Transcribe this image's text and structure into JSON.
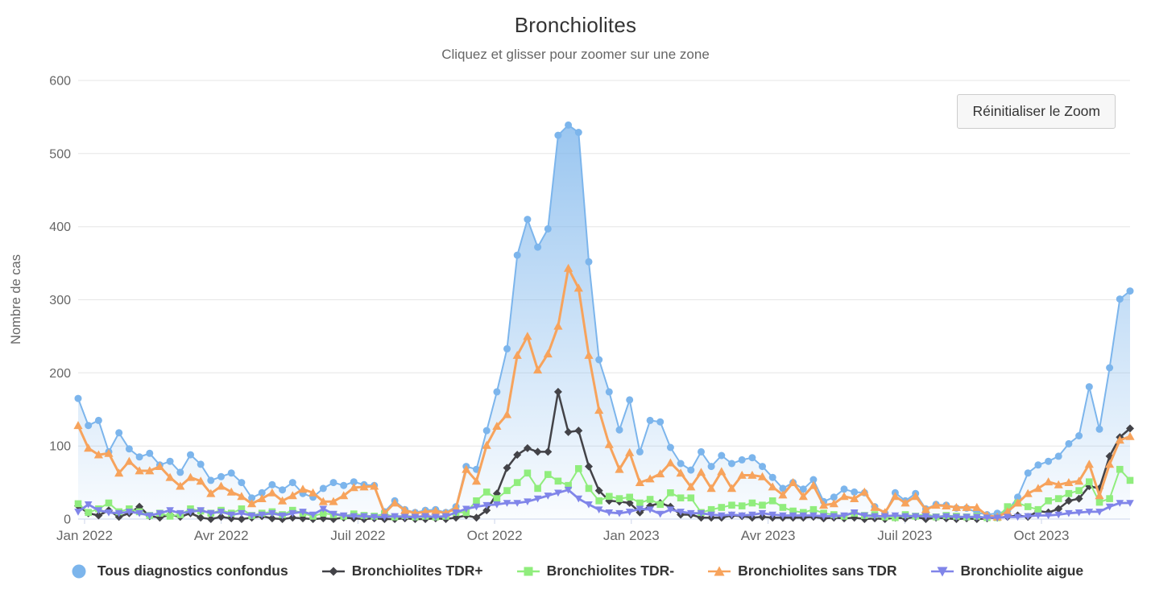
{
  "header": {},
  "toolbar": {
    "reset_zoom_label": "Réinitialiser le Zoom"
  },
  "chart_data": {
    "type": "line",
    "title": "Bronchiolites",
    "subtitle": "Cliquez et glisser pour zoomer sur une zone",
    "xlabel": "",
    "ylabel": "Nombre de cas",
    "ylim": [
      0,
      600
    ],
    "yticks": [
      0,
      100,
      200,
      300,
      400,
      500,
      600
    ],
    "xticklabels": [
      "Jan 2022",
      "Avr 2022",
      "Juil 2022",
      "Oct 2022",
      "Jan 2023",
      "Avr 2023",
      "Juil 2023",
      "Oct 2023"
    ],
    "x_unit": "week",
    "x_range": "Jan 2022 - Dec 2023",
    "grid": true,
    "legend_position": "bottom",
    "series": [
      {
        "name": "Tous diagnostics confondus",
        "type": "area",
        "color": "#7cb5ec",
        "marker": "circle",
        "values": [
          165,
          128,
          135,
          92,
          118,
          96,
          85,
          90,
          74,
          79,
          64,
          88,
          75,
          53,
          58,
          63,
          50,
          29,
          36,
          47,
          40,
          50,
          35,
          30,
          42,
          50,
          46,
          51,
          47,
          46,
          10,
          25,
          13,
          9,
          12,
          13,
          9,
          17,
          72,
          68,
          121,
          174,
          233,
          361,
          410,
          372,
          397,
          525,
          539,
          529,
          352,
          218,
          174,
          122,
          163,
          92,
          135,
          133,
          98,
          76,
          67,
          92,
          72,
          87,
          76,
          81,
          84,
          72,
          57,
          42,
          50,
          41,
          54,
          24,
          30,
          41,
          37,
          36,
          17,
          8,
          36,
          25,
          35,
          14,
          20,
          19,
          15,
          15,
          9,
          6,
          8,
          11,
          30,
          63,
          74,
          79,
          86,
          103,
          114,
          181,
          123,
          207,
          301,
          312
        ]
      },
      {
        "name": "Bronchiolites TDR+",
        "type": "line",
        "color": "#434348",
        "marker": "diamond",
        "values": [
          18,
          8,
          5,
          12,
          3,
          8,
          17,
          4,
          2,
          6,
          3,
          8,
          2,
          0,
          3,
          1,
          0,
          2,
          4,
          1,
          0,
          2,
          1,
          0,
          1,
          0,
          2,
          1,
          0,
          1,
          0,
          0,
          1,
          0,
          0,
          1,
          0,
          2,
          5,
          2,
          12,
          35,
          70,
          88,
          97,
          92,
          92,
          174,
          119,
          121,
          72,
          39,
          25,
          24,
          22,
          9,
          18,
          22,
          17,
          6,
          6,
          2,
          2,
          2,
          5,
          4,
          2,
          3,
          2,
          2,
          2,
          2,
          3,
          1,
          2,
          1,
          2,
          0,
          1,
          0,
          2,
          1,
          3,
          0,
          2,
          1,
          0,
          1,
          0,
          1,
          2,
          3,
          5,
          3,
          11,
          9,
          14,
          25,
          28,
          45,
          42,
          86,
          112,
          124
        ]
      },
      {
        "name": "Bronchiolites TDR-",
        "type": "line",
        "color": "#90ed7d",
        "marker": "square",
        "values": [
          21,
          9,
          14,
          22,
          10,
          14,
          10,
          5,
          8,
          4,
          6,
          14,
          11,
          8,
          12,
          8,
          14,
          5,
          8,
          10,
          6,
          12,
          8,
          4,
          8,
          6,
          4,
          7,
          5,
          4,
          7,
          3,
          5,
          3,
          4,
          3,
          4,
          9,
          9,
          25,
          37,
          28,
          39,
          50,
          63,
          42,
          61,
          52,
          46,
          69,
          42,
          25,
          31,
          28,
          30,
          22,
          27,
          20,
          36,
          29,
          29,
          9,
          13,
          16,
          19,
          18,
          22,
          19,
          25,
          16,
          11,
          9,
          13,
          8,
          6,
          4,
          8,
          5,
          6,
          3,
          2,
          6,
          4,
          7,
          3,
          5,
          4,
          3,
          4,
          2,
          2,
          17,
          22,
          17,
          13,
          25,
          28,
          35,
          39,
          51,
          23,
          28,
          68,
          53
        ]
      },
      {
        "name": "Bronchiolites sans TDR",
        "type": "line",
        "color": "#f7a35c",
        "marker": "triangle-up",
        "values": [
          128,
          97,
          88,
          90,
          63,
          79,
          66,
          66,
          72,
          57,
          45,
          57,
          52,
          35,
          45,
          37,
          31,
          21,
          28,
          36,
          25,
          32,
          41,
          36,
          24,
          24,
          32,
          43,
          44,
          45,
          8,
          22,
          12,
          8,
          10,
          11,
          8,
          15,
          68,
          52,
          101,
          127,
          143,
          224,
          250,
          204,
          226,
          264,
          343,
          316,
          224,
          149,
          102,
          68,
          91,
          50,
          55,
          62,
          77,
          63,
          44,
          64,
          42,
          65,
          42,
          60,
          60,
          58,
          44,
          33,
          50,
          31,
          46,
          19,
          21,
          31,
          28,
          37,
          16,
          9,
          31,
          22,
          31,
          13,
          19,
          18,
          16,
          16,
          16,
          5,
          3,
          10,
          22,
          35,
          42,
          51,
          47,
          50,
          52,
          75,
          32,
          75,
          108,
          113
        ]
      },
      {
        "name": "Bronchiolite aigue",
        "type": "line",
        "color": "#8085e9",
        "marker": "triangle-down",
        "values": [
          10,
          20,
          12,
          9,
          8,
          10,
          8,
          5,
          8,
          12,
          8,
          10,
          12,
          8,
          10,
          6,
          8,
          5,
          6,
          8,
          5,
          8,
          10,
          6,
          14,
          7,
          5,
          4,
          4,
          3,
          3,
          4,
          3,
          3,
          4,
          3,
          4,
          9,
          14,
          17,
          19,
          20,
          22,
          22,
          24,
          28,
          32,
          36,
          40,
          28,
          20,
          13,
          9,
          8,
          10,
          14,
          13,
          7,
          13,
          10,
          8,
          8,
          6,
          5,
          6,
          5,
          6,
          8,
          6,
          5,
          5,
          5,
          5,
          4,
          4,
          5,
          9,
          5,
          4,
          4,
          5,
          4,
          4,
          4,
          3,
          4,
          3,
          3,
          3,
          2,
          2,
          3,
          3,
          4,
          5,
          5,
          6,
          8,
          9,
          10,
          10,
          17,
          22,
          22
        ]
      }
    ]
  }
}
